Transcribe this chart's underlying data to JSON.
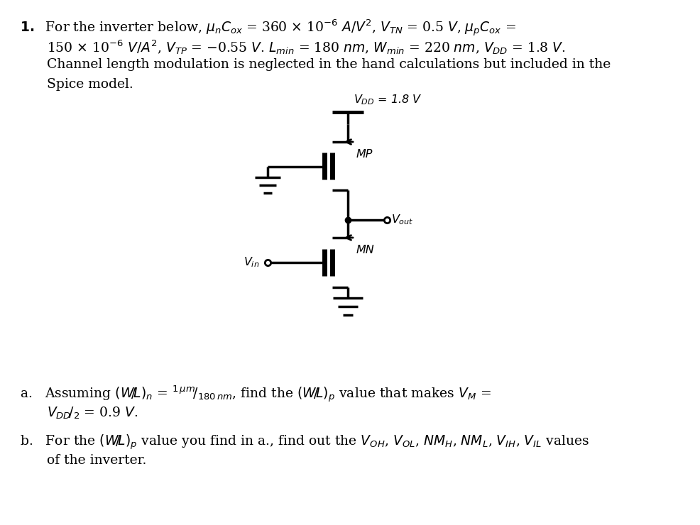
{
  "bg_color": "#ffffff",
  "text_color": "#000000",
  "fig_width": 9.86,
  "fig_height": 7.4,
  "dpi": 100,
  "vdd_label": "$V_{DD}$ = 1.8 V",
  "mp_label": "MP",
  "mn_label": "MN",
  "vout_label": "$oV_{out}$",
  "vin_label": "$V_{in}$",
  "fs_main": 13.5,
  "fs_circuit": 11.5
}
